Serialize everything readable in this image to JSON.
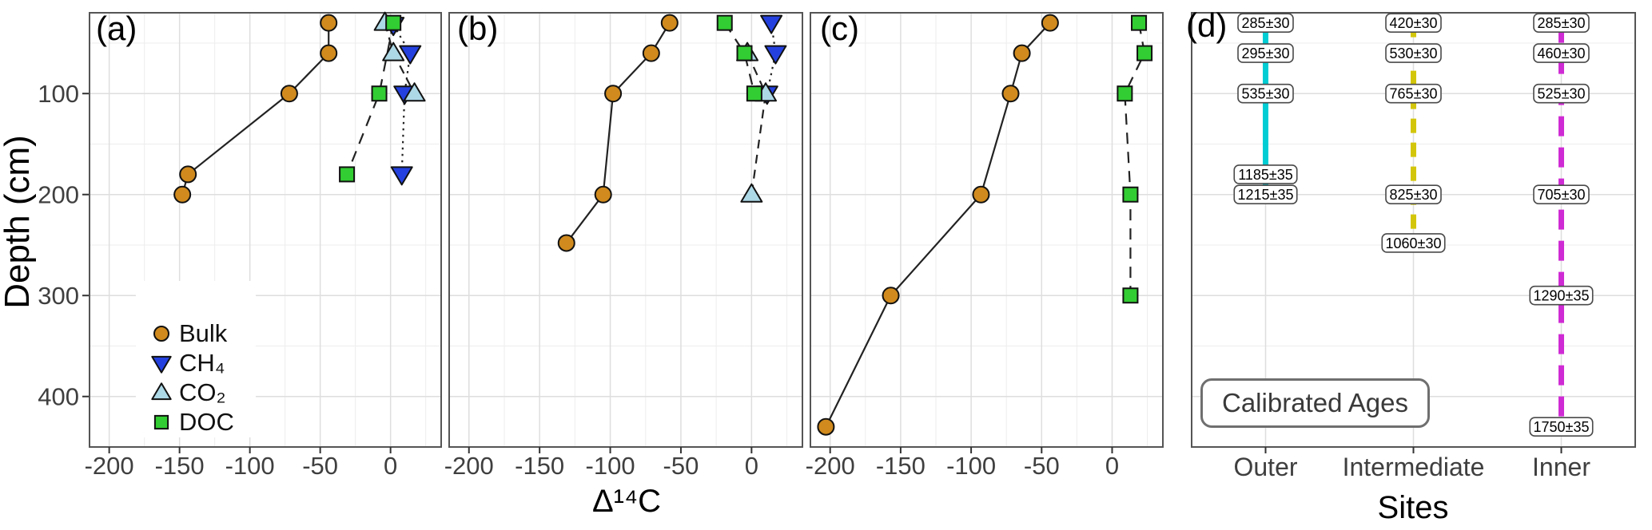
{
  "figure": {
    "panel_tags": [
      "(a)",
      "(b)",
      "(c)",
      "(d)"
    ],
    "y_axis": {
      "title": "Depth (cm)",
      "ticks": [
        100,
        200,
        300,
        400
      ],
      "minor_ticks": [
        50,
        150,
        250,
        350
      ],
      "lim": [
        20,
        450
      ]
    },
    "x_axis_abc": {
      "title": "Δ¹⁴C",
      "ticks": [
        -200,
        -150,
        -100,
        -50,
        0
      ],
      "minor_ticks": [
        -175,
        -125,
        -75,
        -25,
        25
      ],
      "lim": [
        -214,
        36
      ]
    },
    "x_axis_d": {
      "title": "Sites",
      "categories": [
        "Outer",
        "Intermediate",
        "Inner"
      ]
    },
    "legend": {
      "items": [
        {
          "label": "Bulk",
          "marker": "circle",
          "color": "#D08A1D"
        },
        {
          "label": "CH₄",
          "marker": "triangle-down",
          "color": "#2441DF"
        },
        {
          "label": "CO₂",
          "marker": "triangle-up",
          "color": "#ADD8E6"
        },
        {
          "label": "DOC",
          "marker": "square",
          "color": "#32CD32"
        }
      ]
    },
    "annotation_d": "Calibrated Ages"
  },
  "chart_data": [
    {
      "panel": "a",
      "type": "scatter",
      "xlabel": "Δ¹⁴C",
      "ylabel": "Depth (cm)",
      "xlim": [
        -214,
        36
      ],
      "ylim": [
        20,
        450
      ],
      "grid": true,
      "legend_position": "inside-bottom-left",
      "series": [
        {
          "name": "Bulk",
          "marker": "circle",
          "color": "#D08A1D",
          "linestyle": "solid",
          "dash": null,
          "points": [
            [
              30,
              -44
            ],
            [
              60,
              -44
            ],
            [
              100,
              -72
            ],
            [
              180,
              -144
            ],
            [
              200,
              -148
            ]
          ]
        },
        {
          "name": "CH₄",
          "marker": "triangle-down",
          "color": "#2441DF",
          "linestyle": "dotted",
          "dash": [
            2.5,
            5.5
          ],
          "points": [
            [
              32,
              2
            ],
            [
              60,
              14
            ],
            [
              100,
              10
            ],
            [
              180,
              8
            ]
          ]
        },
        {
          "name": "CO₂",
          "marker": "triangle-up",
          "color": "#ADD8E6",
          "linestyle": "dashed",
          "dash": [
            11,
            8
          ],
          "points": [
            [
              30,
              -4
            ],
            [
              60,
              2
            ],
            [
              100,
              17
            ]
          ]
        },
        {
          "name": "DOC",
          "marker": "square",
          "color": "#32CD32",
          "linestyle": "dashed",
          "dash": [
            14,
            10
          ],
          "points": [
            [
              30,
              2
            ],
            [
              100,
              -8
            ],
            [
              180,
              -31
            ]
          ]
        }
      ]
    },
    {
      "panel": "b",
      "type": "scatter",
      "xlabel": "Δ¹⁴C",
      "ylabel": "Depth (cm)",
      "xlim": [
        -214,
        36
      ],
      "ylim": [
        20,
        450
      ],
      "grid": true,
      "series": [
        {
          "name": "Bulk",
          "marker": "circle",
          "color": "#D08A1D",
          "linestyle": "solid",
          "dash": null,
          "points": [
            [
              30,
              -58
            ],
            [
              60,
              -71
            ],
            [
              100,
              -98
            ],
            [
              200,
              -105
            ],
            [
              248,
              -131
            ]
          ]
        },
        {
          "name": "CH₄",
          "marker": "triangle-down",
          "color": "#2441DF",
          "linestyle": "dotted",
          "dash": [
            2.5,
            5.5
          ],
          "points": [
            [
              30,
              14
            ],
            [
              60,
              17
            ],
            [
              100,
              11
            ]
          ]
        },
        {
          "name": "CO₂",
          "marker": "triangle-up",
          "color": "#ADD8E6",
          "linestyle": "dashed",
          "dash": [
            11,
            8
          ],
          "points": [
            [
              60,
              -3
            ],
            [
              100,
              10
            ],
            [
              200,
              0
            ]
          ]
        },
        {
          "name": "DOC",
          "marker": "square",
          "color": "#32CD32",
          "linestyle": "dashed",
          "dash": [
            14,
            10
          ],
          "points": [
            [
              30,
              -19
            ],
            [
              60,
              -5
            ],
            [
              100,
              2
            ]
          ]
        }
      ]
    },
    {
      "panel": "c",
      "type": "scatter",
      "xlabel": "Δ¹⁴C",
      "ylabel": "Depth (cm)",
      "xlim": [
        -214,
        36
      ],
      "ylim": [
        20,
        450
      ],
      "grid": true,
      "series": [
        {
          "name": "Bulk",
          "marker": "circle",
          "color": "#D08A1D",
          "linestyle": "solid",
          "dash": null,
          "points": [
            [
              30,
              -44
            ],
            [
              60,
              -64
            ],
            [
              100,
              -72
            ],
            [
              200,
              -93
            ],
            [
              300,
              -157
            ],
            [
              430,
              -203
            ]
          ]
        },
        {
          "name": "DOC",
          "marker": "square",
          "color": "#32CD32",
          "linestyle": "dashed",
          "dash": [
            14,
            10
          ],
          "points": [
            [
              30,
              19
            ],
            [
              60,
              23
            ],
            [
              100,
              9
            ],
            [
              200,
              13
            ],
            [
              300,
              13
            ]
          ]
        }
      ]
    },
    {
      "panel": "d",
      "type": "scatter",
      "xlabel": "Sites",
      "ylabel": "Depth (cm)",
      "ylim": [
        20,
        450
      ],
      "categories": [
        "Outer",
        "Intermediate",
        "Inner"
      ],
      "annotation": "Calibrated Ages",
      "series": [
        {
          "name": "Outer",
          "color": "#00CDD4",
          "linestyle": "solid",
          "dash": null,
          "line_span": [
            30,
            200
          ],
          "ages": [
            [
              30,
              "285±30"
            ],
            [
              60,
              "295±30"
            ],
            [
              100,
              "535±30"
            ],
            [
              180,
              "1185±35"
            ],
            [
              200,
              "1215±35"
            ]
          ]
        },
        {
          "name": "Intermediate",
          "color": "#D3C60A",
          "linestyle": "dashed",
          "dash": [
            18,
            12
          ],
          "line_span": [
            30,
            248
          ],
          "ages": [
            [
              30,
              "420±30"
            ],
            [
              60,
              "530±30"
            ],
            [
              100,
              "765±30"
            ],
            [
              200,
              "825±30"
            ],
            [
              248,
              "1060±30"
            ]
          ]
        },
        {
          "name": "Inner",
          "color": "#CF2BD4",
          "linestyle": "dashed",
          "dash": [
            25,
            14
          ],
          "line_span": [
            30,
            430
          ],
          "ages": [
            [
              30,
              "285±30"
            ],
            [
              60,
              "460±30"
            ],
            [
              100,
              "525±30"
            ],
            [
              200,
              "705±30"
            ],
            [
              300,
              "1290±35"
            ],
            [
              430,
              "1750±35"
            ]
          ]
        }
      ]
    }
  ]
}
